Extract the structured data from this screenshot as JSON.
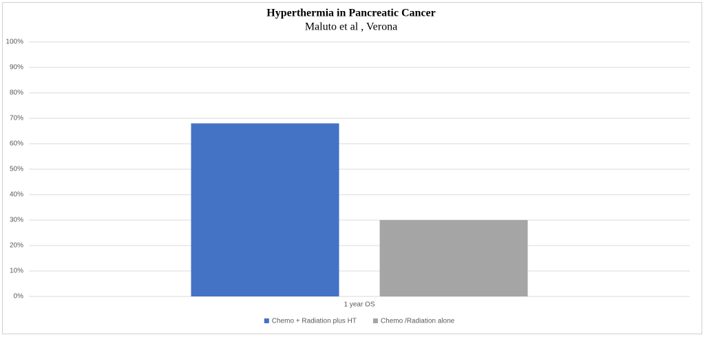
{
  "chart_data": {
    "type": "bar",
    "title": "Hyperthermia in Pancreatic Cancer",
    "subtitle": "Maluto et al , Verona",
    "categories": [
      "1 year OS"
    ],
    "series": [
      {
        "name": "Chemo + Radiation plus HT",
        "color": "#4472c4",
        "values": [
          68
        ]
      },
      {
        "name": "Chemo /Radiation alone",
        "color": "#a5a5a5",
        "values": [
          30
        ]
      }
    ],
    "ylim": [
      0,
      100
    ],
    "yticks": [
      {
        "value": 0,
        "label": "0%"
      },
      {
        "value": 10,
        "label": "10%"
      },
      {
        "value": 20,
        "label": "20%"
      },
      {
        "value": 30,
        "label": "30%"
      },
      {
        "value": 40,
        "label": "40%"
      },
      {
        "value": 50,
        "label": "50%"
      },
      {
        "value": 60,
        "label": "60%"
      },
      {
        "value": 70,
        "label": "70%"
      },
      {
        "value": 80,
        "label": "80%"
      },
      {
        "value": 90,
        "label": "90%"
      },
      {
        "value": 100,
        "label": "100%"
      }
    ],
    "grid": true,
    "legend": "bottom"
  }
}
